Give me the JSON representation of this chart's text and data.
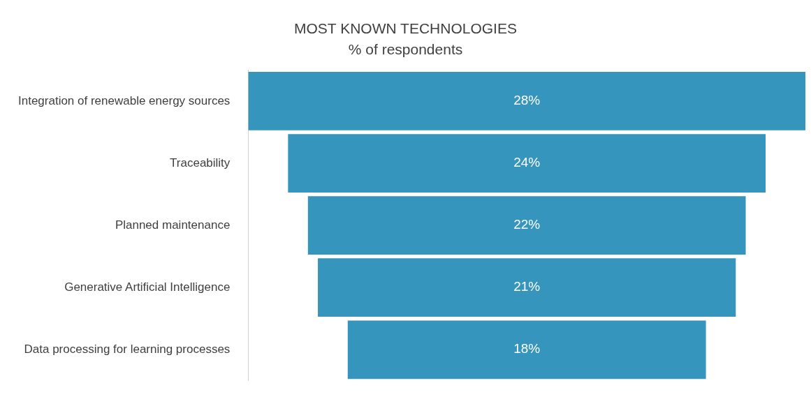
{
  "chart_data": {
    "type": "other",
    "title": "MOST KNOWN TECHNOLOGIES",
    "subtitle": "% of respondents",
    "categories": [
      "Integration of renewable energy sources",
      "Traceability",
      "Planned maintenance",
      "Generative Artificial Intelligence",
      "Data processing for learning processes"
    ],
    "values": [
      28,
      24,
      22,
      21,
      18
    ],
    "value_labels": [
      "28%",
      "24%",
      "22%",
      "21%",
      "18%"
    ],
    "color": "#3595bc"
  }
}
